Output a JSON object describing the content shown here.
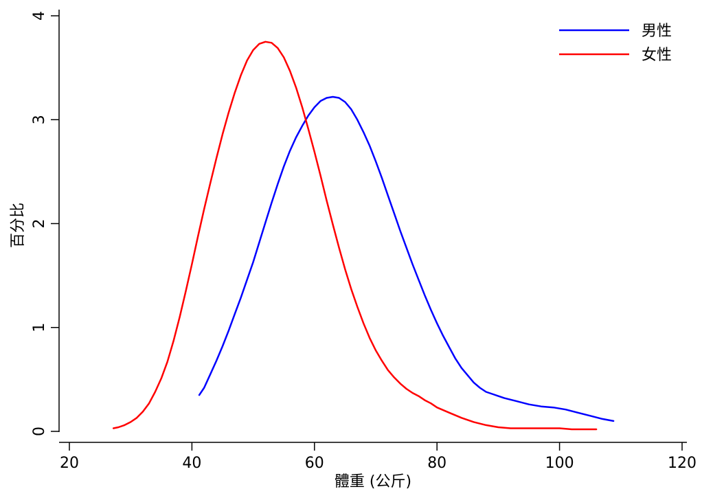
{
  "chart_data": {
    "type": "line",
    "title": "",
    "xlabel": "體重 (公斤)",
    "ylabel": "百分比",
    "xlim": [
      20,
      120
    ],
    "ylim": [
      0,
      4
    ],
    "xticks": [
      20,
      40,
      60,
      80,
      100,
      120
    ],
    "yticks": [
      0,
      1,
      2,
      3,
      4
    ],
    "grid": false,
    "legend_position": "top-right",
    "series": [
      {
        "name": "男性",
        "color": "#0000ff",
        "x": [
          41.2,
          42.0,
          43.0,
          44.0,
          45.0,
          46.0,
          47.0,
          48.0,
          49.0,
          50.0,
          51.0,
          52.0,
          53.0,
          54.0,
          55.0,
          56.0,
          57.0,
          58.0,
          59.0,
          60.0,
          61.0,
          62.0,
          63.0,
          64.0,
          65.0,
          66.0,
          67.0,
          68.0,
          69.0,
          70.0,
          71.0,
          72.0,
          73.0,
          74.0,
          75.0,
          76.0,
          77.0,
          78.0,
          79.0,
          80.0,
          81.0,
          82.0,
          83.0,
          84.0,
          85.0,
          86.0,
          87.0,
          88.0,
          89.0,
          90.0,
          91.0,
          93.0,
          95.0,
          97.0,
          99.0,
          101.0,
          103.0,
          105.0,
          107.0,
          108.8
        ],
        "y": [
          0.35,
          0.42,
          0.55,
          0.68,
          0.82,
          0.97,
          1.13,
          1.29,
          1.46,
          1.63,
          1.82,
          2.01,
          2.2,
          2.38,
          2.55,
          2.7,
          2.83,
          2.94,
          3.04,
          3.12,
          3.18,
          3.21,
          3.22,
          3.21,
          3.17,
          3.1,
          3.0,
          2.88,
          2.75,
          2.6,
          2.44,
          2.27,
          2.1,
          1.93,
          1.77,
          1.61,
          1.46,
          1.31,
          1.17,
          1.04,
          0.92,
          0.81,
          0.7,
          0.61,
          0.54,
          0.47,
          0.42,
          0.38,
          0.36,
          0.34,
          0.32,
          0.29,
          0.26,
          0.24,
          0.23,
          0.21,
          0.18,
          0.15,
          0.12,
          0.1
        ]
      },
      {
        "name": "女性",
        "color": "#ff0000",
        "x": [
          27.2,
          28.0,
          29.0,
          30.0,
          31.0,
          32.0,
          33.0,
          34.0,
          35.0,
          36.0,
          37.0,
          38.0,
          39.0,
          40.0,
          41.0,
          42.0,
          43.0,
          44.0,
          45.0,
          46.0,
          47.0,
          48.0,
          49.0,
          50.0,
          51.0,
          52.0,
          53.0,
          54.0,
          55.0,
          56.0,
          57.0,
          58.0,
          59.0,
          60.0,
          61.0,
          62.0,
          63.0,
          64.0,
          65.0,
          66.0,
          67.0,
          68.0,
          69.0,
          70.0,
          71.0,
          72.0,
          73.0,
          74.0,
          75.0,
          76.0,
          77.0,
          78.0,
          79.0,
          80.0,
          82.0,
          84.0,
          86.0,
          88.0,
          90.0,
          92.0,
          94.0,
          96.0,
          98.0,
          100.0,
          102.0,
          104.0,
          106.0
        ],
        "y": [
          0.03,
          0.04,
          0.06,
          0.09,
          0.13,
          0.19,
          0.27,
          0.38,
          0.51,
          0.67,
          0.87,
          1.1,
          1.35,
          1.61,
          1.88,
          2.14,
          2.39,
          2.63,
          2.86,
          3.07,
          3.26,
          3.43,
          3.57,
          3.67,
          3.73,
          3.75,
          3.74,
          3.69,
          3.6,
          3.47,
          3.31,
          3.12,
          2.91,
          2.69,
          2.46,
          2.22,
          1.99,
          1.77,
          1.56,
          1.37,
          1.2,
          1.04,
          0.9,
          0.78,
          0.68,
          0.59,
          0.52,
          0.46,
          0.41,
          0.37,
          0.34,
          0.3,
          0.27,
          0.23,
          0.18,
          0.13,
          0.09,
          0.06,
          0.04,
          0.03,
          0.03,
          0.03,
          0.03,
          0.03,
          0.02,
          0.02,
          0.02
        ]
      }
    ]
  }
}
